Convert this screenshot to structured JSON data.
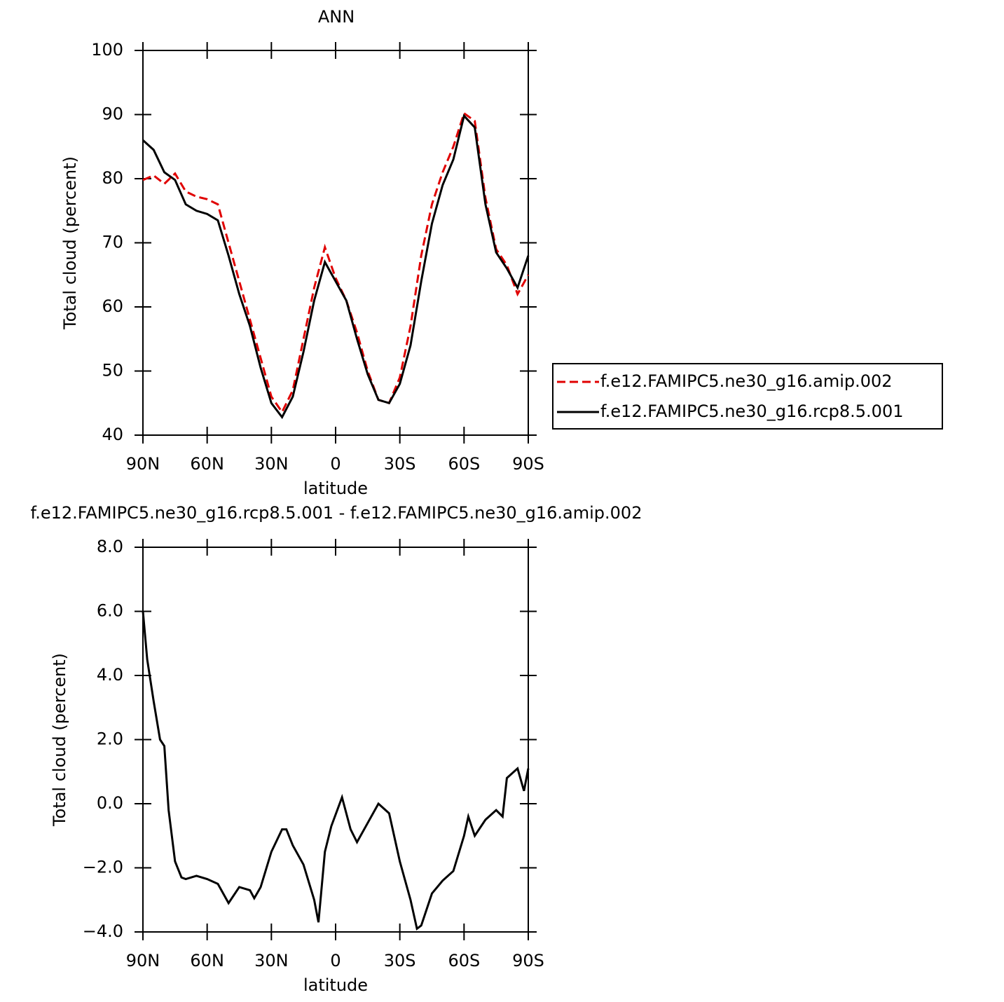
{
  "chart_data": [
    {
      "type": "line",
      "title": "ANN",
      "ylabel": "Total cloud (percent)",
      "xlabel": "latitude",
      "x": [
        90,
        85,
        80,
        75,
        70,
        65,
        60,
        55,
        50,
        45,
        40,
        35,
        30,
        25,
        20,
        15,
        10,
        5,
        0,
        -5,
        -10,
        -15,
        -20,
        -25,
        -30,
        -35,
        -40,
        -45,
        -50,
        -55,
        -60,
        -65,
        -70,
        -75,
        -80,
        -85,
        -90
      ],
      "series": [
        {
          "name": "f.e12.FAMIPC5.ne30_g16.amip.002",
          "color": "#e00000",
          "linestyle": "dashed",
          "values": [
            79.8,
            80.5,
            79.2,
            80.8,
            78,
            77.2,
            76.8,
            76,
            70,
            64,
            58,
            52,
            46,
            43.6,
            47,
            55,
            63,
            69.3,
            64.5,
            61,
            56,
            50,
            45.5,
            45,
            49,
            57,
            68,
            76,
            81,
            85,
            90.2,
            89,
            77,
            69,
            66.5,
            62,
            65
          ]
        },
        {
          "name": "f.e12.FAMIPC5.ne30_g16.rcp8.5.001",
          "color": "#000000",
          "linestyle": "solid",
          "values": [
            86,
            84.5,
            81,
            79.8,
            76,
            75,
            74.5,
            73.5,
            68,
            62,
            57,
            50.5,
            45,
            42.8,
            46,
            53,
            61,
            67,
            64,
            61,
            55,
            49.5,
            45.5,
            45,
            48,
            54,
            64,
            73,
            79,
            83,
            89.8,
            88,
            76,
            68.5,
            66,
            63,
            68
          ]
        }
      ],
      "xlim": [
        90,
        -90
      ],
      "xticks": [
        {
          "value": 90,
          "label": "90N"
        },
        {
          "value": 60,
          "label": "60N"
        },
        {
          "value": 30,
          "label": "30N"
        },
        0,
        {
          "value": -30,
          "label": "30S"
        },
        {
          "value": -60,
          "label": "60S"
        },
        {
          "value": -90,
          "label": "90S"
        }
      ],
      "ylim": [
        40,
        100
      ],
      "yticks": [
        40,
        50,
        60,
        70,
        80,
        90,
        100
      ],
      "legend": "right"
    },
    {
      "type": "line",
      "title": "f.e12.FAMIPC5.ne30_g16.rcp8.5.001 - f.e12.FAMIPC5.ne30_g16.amip.002",
      "ylabel": "Total cloud (percent)",
      "xlabel": "latitude",
      "x": [
        90,
        88,
        85,
        82,
        80,
        78,
        75,
        72,
        70,
        65,
        60,
        55,
        50,
        45,
        40,
        38,
        35,
        30,
        25,
        23,
        20,
        15,
        10,
        8,
        5,
        2,
        -3,
        -7,
        -10,
        -15,
        -20,
        -25,
        -30,
        -35,
        -38,
        -40,
        -45,
        -50,
        -55,
        -60,
        -62,
        -65,
        -70,
        -75,
        -78,
        -80,
        -85,
        -88,
        -90
      ],
      "series": [
        {
          "color": "#000000",
          "linestyle": "solid",
          "values": [
            6.0,
            4.5,
            3.2,
            2.0,
            1.8,
            -0.2,
            -1.8,
            -2.3,
            -2.35,
            -2.25,
            -2.35,
            -2.5,
            -3.1,
            -2.6,
            -2.7,
            -2.95,
            -2.6,
            -1.5,
            -0.8,
            -0.8,
            -1.3,
            -1.9,
            -3.0,
            -3.7,
            -1.5,
            -0.7,
            0.2,
            -0.8,
            -1.2,
            -0.6,
            0.0,
            -0.3,
            -1.8,
            -3.0,
            -3.9,
            -3.8,
            -2.8,
            -2.4,
            -2.1,
            -1.0,
            -0.4,
            -1.0,
            -0.5,
            -0.2,
            -0.4,
            0.8,
            1.1,
            0.4,
            1.1
          ]
        }
      ],
      "xlim": [
        90,
        -90
      ],
      "xticks": [
        {
          "value": 90,
          "label": "90N"
        },
        {
          "value": 60,
          "label": "60N"
        },
        {
          "value": 30,
          "label": "30N"
        },
        0,
        {
          "value": -30,
          "label": "30S"
        },
        {
          "value": -60,
          "label": "60S"
        },
        {
          "value": -90,
          "label": "90S"
        }
      ],
      "ylim": [
        -4,
        8
      ],
      "yticks": [
        {
          "value": -4,
          "label": "−4.0"
        },
        {
          "value": -2,
          "label": "−2.0"
        },
        {
          "value": 0,
          "label": "0.0"
        },
        {
          "value": 2,
          "label": "2.0"
        },
        {
          "value": 4,
          "label": "4.0"
        },
        {
          "value": 6,
          "label": "6.0"
        },
        {
          "value": 8,
          "label": "8.0"
        }
      ]
    }
  ]
}
